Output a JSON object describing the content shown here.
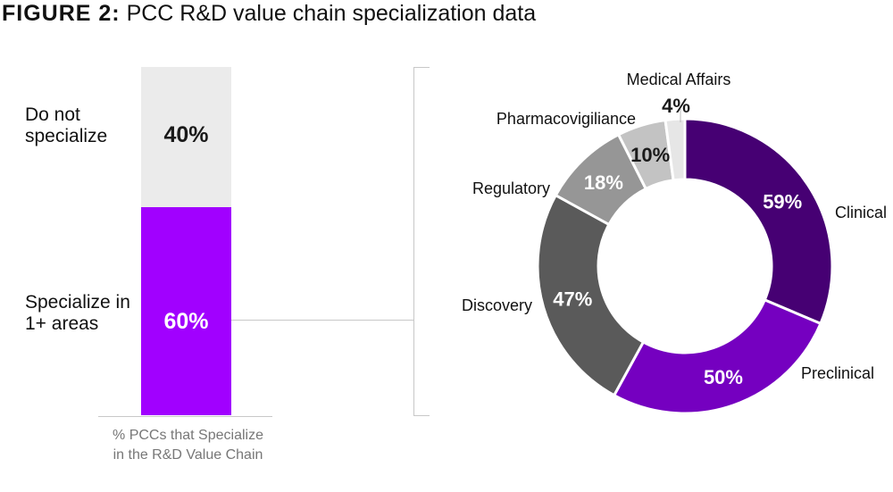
{
  "figure": {
    "title_prefix": "FIGURE 2:",
    "title_rest": " PCC R&D value chain specialization data"
  },
  "chart_data": [
    {
      "type": "bar",
      "stacked": true,
      "caption": "% PCCs that Specialize in the R&D Value Chain",
      "segments": [
        {
          "label": "Do not specialize",
          "value": 40,
          "value_label": "40%",
          "color": "#ebebeb"
        },
        {
          "label": "Specialize in 1+ areas",
          "value": 60,
          "value_label": "60%",
          "color": "#a100ff"
        }
      ]
    },
    {
      "type": "pie",
      "donut": true,
      "slices": [
        {
          "label": "Clinical",
          "value": 59,
          "value_label": "59%",
          "color": "#460073",
          "text_color": "#ffffff"
        },
        {
          "label": "Preclinical",
          "value": 50,
          "value_label": "50%",
          "color": "#7500c0",
          "text_color": "#ffffff"
        },
        {
          "label": "Discovery",
          "value": 47,
          "value_label": "47%",
          "color": "#5a5a5a",
          "text_color": "#ffffff"
        },
        {
          "label": "Regulatory",
          "value": 18,
          "value_label": "18%",
          "color": "#969696",
          "text_color": "#ffffff"
        },
        {
          "label": "Pharmacovigiliance",
          "value": 10,
          "value_label": "10%",
          "color": "#c3c3c3",
          "text_color": "#1a1a1a"
        },
        {
          "label": "Medical Affairs",
          "value": 4,
          "value_label": "4%",
          "color": "#e6e6e6",
          "text_color": "#1a1a1a"
        }
      ]
    }
  ]
}
